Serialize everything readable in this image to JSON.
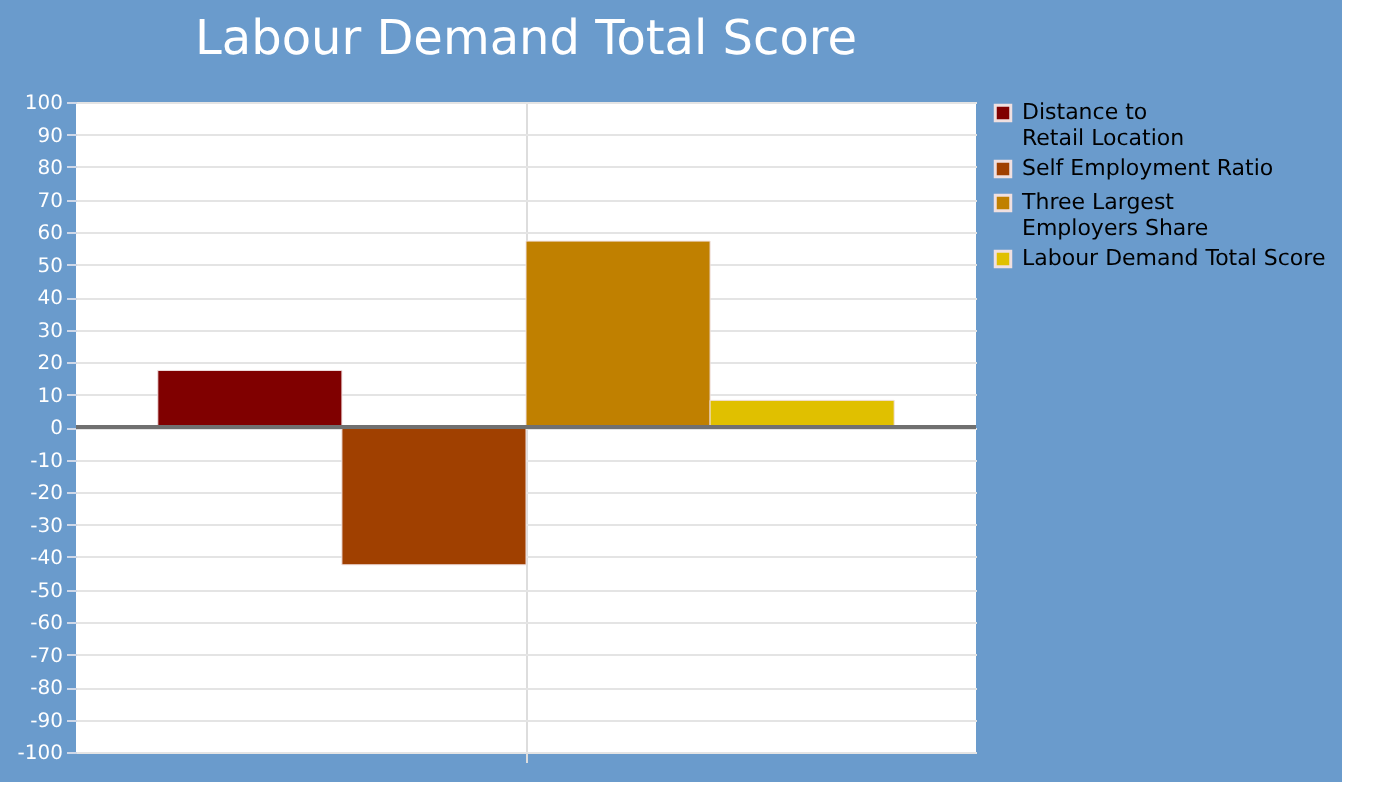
{
  "chart_data": {
    "type": "bar",
    "title": "Labour Demand Total Score",
    "categories": [
      null
    ],
    "series": [
      {
        "name": "Distance to\nRetail Location",
        "color": "#800000",
        "values": [
          17.4
        ]
      },
      {
        "name": "Self Employment Ratio",
        "color": "#a04000",
        "values": [
          -42.4
        ]
      },
      {
        "name": "Three Largest\nEmployers Share",
        "color": "#c08000",
        "values": [
          57.2
        ]
      },
      {
        "name": "Labour Demand Total Score",
        "color": "#e0c000",
        "values": [
          8.2
        ]
      }
    ],
    "ylim": [
      -100,
      100
    ],
    "yticks": [
      -100,
      -90,
      -80,
      -70,
      -60,
      -50,
      -40,
      -30,
      -20,
      -10,
      0,
      10,
      20,
      30,
      40,
      50,
      60,
      70,
      80,
      90,
      100
    ],
    "ref_lines": [
      {
        "axis": "y",
        "value": 0,
        "color": "#707070"
      }
    ],
    "grid": true,
    "legend": "right"
  }
}
